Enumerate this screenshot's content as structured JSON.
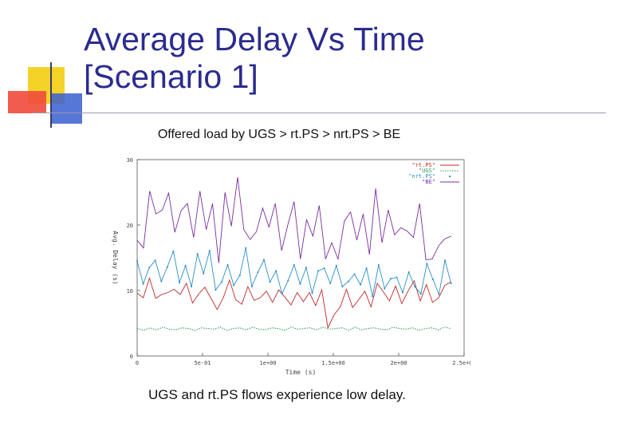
{
  "slide": {
    "title_line1": "Average Delay Vs Time",
    "title_line2": "[Scenario 1]",
    "subtitle": "Offered load by UGS > rt.PS > nrt.PS > BE",
    "caption": "UGS and rt.PS flows experience low delay.",
    "colors": {
      "title": "#2b2b8f",
      "deco_yellow": "#f5d228",
      "deco_red": "#f04a3c",
      "deco_blue": "#3a5fd0",
      "deco_line": "#3a3a6a"
    }
  },
  "chart_data": {
    "type": "line",
    "title": "",
    "xlabel": "Time (s)",
    "ylabel": "Avg. Delay (s)",
    "xlim": [
      0,
      2.5
    ],
    "ylim": [
      0,
      30
    ],
    "x_ticks": [
      0,
      0.5,
      1,
      1.5,
      2,
      2.5
    ],
    "x_tick_labels": [
      "0",
      "5e-01",
      "1e+00",
      "1.5e+00",
      "2e+00",
      "2.5e+00"
    ],
    "y_ticks": [
      0,
      10,
      20,
      30
    ],
    "y_tick_labels": [
      "0",
      "10",
      "20",
      "30"
    ],
    "grid": false,
    "legend_position": "top-right",
    "series": [
      {
        "name": "rt.PS",
        "color": "#c0282a",
        "style": "line",
        "values": [
          9.6,
          8.9,
          11.9,
          8.8,
          9.4,
          9.7,
          10.2,
          9.4,
          11.1,
          8.1,
          9.5,
          10.5,
          8.8,
          7.1,
          8.9,
          11.6,
          8.6,
          7.9,
          10.6,
          8.5,
          8.9,
          9.9,
          8.2,
          10.1,
          9.0,
          7.8,
          9.7,
          8.3,
          9.7,
          7.7,
          10.1,
          4.3,
          6.3,
          7.5,
          10.2,
          7.4,
          8.6,
          9.9,
          7.5,
          11.1,
          9.8,
          8.4,
          10.7,
          8.0,
          9.9,
          11.5,
          8.4,
          10.9,
          8.2,
          8.9,
          10.8,
          11.3
        ]
      },
      {
        "name": "UGS",
        "color": "#2ca05a",
        "style": "dotted",
        "values": [
          4.2,
          3.9,
          4.3,
          4.0,
          4.4,
          4.1,
          4.0,
          4.3,
          4.2,
          3.9,
          4.3,
          4.2,
          4.1,
          4.4,
          3.9,
          4.2,
          4.3,
          4.0,
          4.4,
          4.1,
          4.0,
          4.3,
          4.2,
          3.9,
          4.4,
          4.1,
          4.2,
          4.3,
          4.0,
          4.4,
          4.1,
          4.2,
          4.3,
          3.9,
          4.4,
          4.0,
          4.2,
          4.3,
          4.1,
          4.0,
          4.4,
          4.2,
          4.1,
          4.3,
          3.9,
          4.2,
          4.3,
          4.0,
          4.4,
          4.2
        ]
      },
      {
        "name": "nrt.PS",
        "color": "#2a8fc6",
        "style": "line-points",
        "values": [
          14.5,
          11.0,
          13.5,
          14.6,
          11.4,
          13.6,
          16.0,
          11.2,
          13.8,
          10.6,
          15.6,
          12.6,
          16.1,
          10.1,
          11.3,
          13.9,
          10.8,
          12.3,
          16.5,
          10.6,
          12.8,
          14.7,
          11.3,
          13.0,
          9.5,
          11.5,
          13.9,
          11.0,
          13.5,
          9.6,
          13.0,
          13.4,
          11.1,
          13.8,
          10.6,
          11.4,
          12.5,
          10.9,
          13.4,
          9.1,
          13.9,
          10.3,
          11.8,
          12.0,
          9.7,
          12.8,
          10.6,
          9.5,
          14.1,
          11.7,
          9.4,
          14.6,
          11.1
        ]
      },
      {
        "name": "BE",
        "color": "#7a2e9e",
        "style": "line",
        "values": [
          17.7,
          16.5,
          25.2,
          21.7,
          22.3,
          24.9,
          18.9,
          22.2,
          23.3,
          18.1,
          25.2,
          19.3,
          23.3,
          14.2,
          25.0,
          19.8,
          27.3,
          19.3,
          17.8,
          19.0,
          22.6,
          19.7,
          23.3,
          16.1,
          20.0,
          23.6,
          14.8,
          20.8,
          18.3,
          23.0,
          14.8,
          17.3,
          14.8,
          20.6,
          22.0,
          17.7,
          21.7,
          15.5,
          25.6,
          17.3,
          22.3,
          18.5,
          19.6,
          19.1,
          18.1,
          23.3,
          14.7,
          14.8,
          16.8,
          17.9,
          18.3
        ]
      }
    ]
  }
}
